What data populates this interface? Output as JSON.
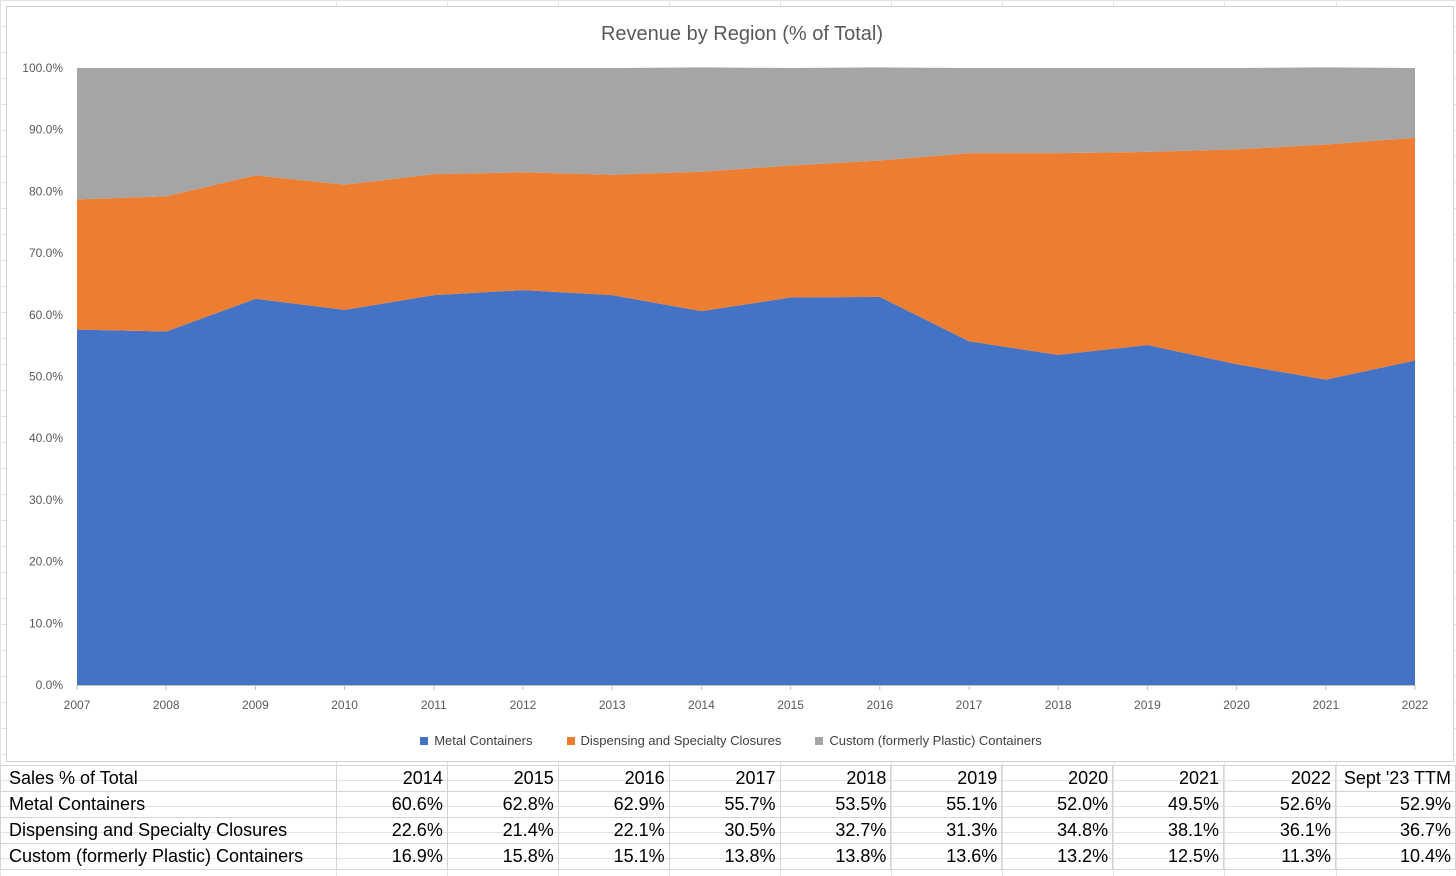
{
  "chart_data": {
    "type": "area",
    "stacked": true,
    "title": "Revenue by Region (% of Total)",
    "x": [
      "2007",
      "2008",
      "2009",
      "2010",
      "2011",
      "2012",
      "2013",
      "2014",
      "2015",
      "2016",
      "2017",
      "2018",
      "2019",
      "2020",
      "2021",
      "2022"
    ],
    "series": [
      {
        "name": "Metal Containers",
        "color": "#4472C4",
        "values": [
          57.6,
          57.3,
          62.6,
          60.8,
          63.2,
          64.0,
          63.2,
          60.6,
          62.8,
          62.9,
          55.7,
          53.5,
          55.1,
          52.0,
          49.5,
          52.6
        ]
      },
      {
        "name": "Dispensing and Specialty Closures",
        "color": "#ED7D31",
        "values": [
          21.1,
          21.9,
          20.0,
          20.3,
          19.6,
          19.1,
          19.5,
          22.6,
          21.4,
          22.1,
          30.5,
          32.7,
          31.3,
          34.8,
          38.1,
          36.1
        ]
      },
      {
        "name": "Custom (formerly Plastic) Containers",
        "color": "#A5A5A5",
        "values": [
          21.3,
          20.8,
          17.4,
          18.9,
          17.2,
          16.9,
          17.3,
          16.9,
          15.8,
          15.1,
          13.8,
          13.8,
          13.6,
          13.2,
          12.5,
          11.3
        ]
      }
    ],
    "ylim": [
      0,
      100
    ],
    "yticks": [
      "0.0%",
      "10.0%",
      "20.0%",
      "30.0%",
      "40.0%",
      "50.0%",
      "60.0%",
      "70.0%",
      "80.0%",
      "90.0%",
      "100.0%"
    ],
    "grid": false,
    "legend": "bottom"
  },
  "table": {
    "header": [
      "Sales % of Total",
      "2014",
      "2015",
      "2016",
      "2017",
      "2018",
      "2019",
      "2020",
      "2021",
      "2022",
      "Sept '23 TTM"
    ],
    "rows": [
      [
        "Metal Containers",
        "60.6%",
        "62.8%",
        "62.9%",
        "55.7%",
        "53.5%",
        "55.1%",
        "52.0%",
        "49.5%",
        "52.6%",
        "52.9%"
      ],
      [
        "Dispensing and Specialty Closures",
        "22.6%",
        "21.4%",
        "22.1%",
        "30.5%",
        "32.7%",
        "31.3%",
        "34.8%",
        "38.1%",
        "36.1%",
        "36.7%"
      ],
      [
        "Custom (formerly Plastic) Containers",
        "16.9%",
        "15.8%",
        "15.1%",
        "13.8%",
        "13.8%",
        "13.6%",
        "13.2%",
        "12.5%",
        "11.3%",
        "10.4%"
      ]
    ]
  }
}
